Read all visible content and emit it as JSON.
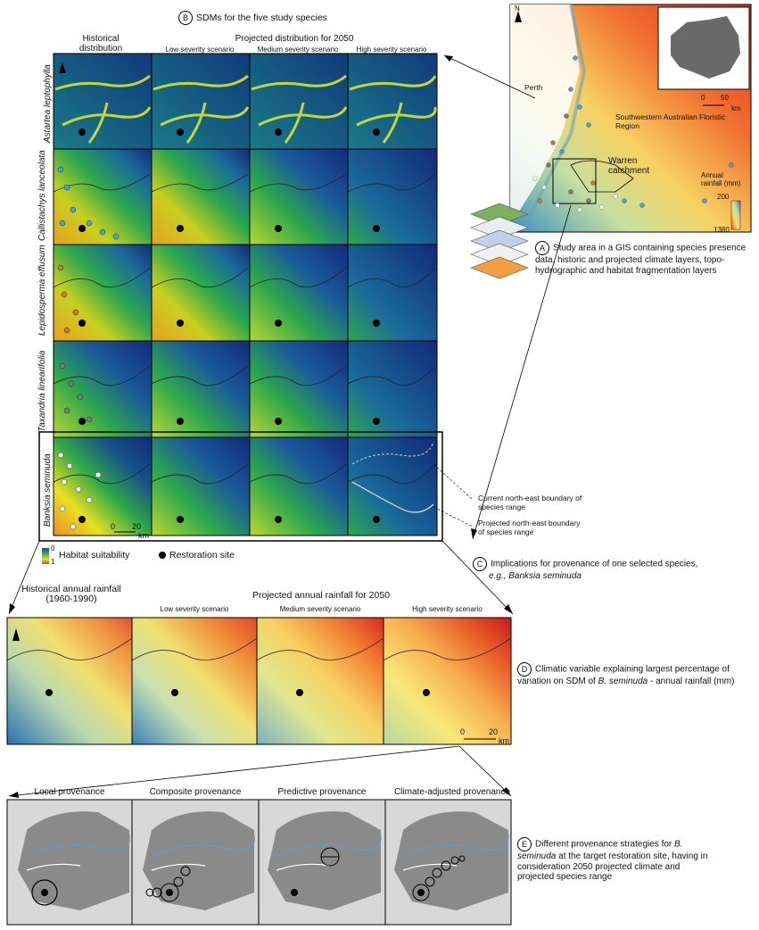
{
  "section_b": {
    "letter": "B",
    "title": "SDMs for the five study species",
    "col_historical": "Historical distribution",
    "projected_header": "Projected distribution for 2050",
    "scenarios": [
      "Low severity scenario",
      "Medium severity scenario",
      "High severity scenario"
    ],
    "species": [
      "Astartea leptophylla",
      "Callistachys lanceolata",
      "Lepidosperma effusum",
      "Taxandria linearifolia",
      "Banksia seminuda"
    ],
    "scale": {
      "zero": "0",
      "dist": "20",
      "unit": "km"
    },
    "legend_habitat": "Habitat suitability",
    "legend_habitat_max": "0",
    "legend_habitat_min": "1",
    "legend_restoration": "Restoration site",
    "boundary_current": "Current north-east boundary of species range",
    "boundary_projected": "Projected north-east boundary of species range"
  },
  "section_a": {
    "letter": "A",
    "text": "Study area in a GIS containing species presence data, historic and projected climate layers, topo-hydrographic and habitat fragmentation layers",
    "bold_word": "GIS",
    "map_labels": {
      "perth1": "Perth",
      "perth2": "Perth",
      "region": "Southwestern Australian Floristic Region",
      "catchment": "Warren catchment",
      "rainfall_title": "Annual rainfall (mm)",
      "rainfall_max": "200",
      "rainfall_min": "1380",
      "inset_zero": "0",
      "inset_dist": "50",
      "inset_unit": "km",
      "north": "N"
    }
  },
  "section_c": {
    "letter": "C",
    "text": "Implications for provenance of one selected species,",
    "italic": "e.g., Banksia seminuda"
  },
  "section_d": {
    "letter": "D",
    "hist_title": "Historical annual rainfall (1960-1990)",
    "proj_title": "Projected annual rainfall for 2050",
    "scenarios": [
      "Low severity scenario",
      "Medium severity scenario",
      "High severity scenario"
    ],
    "text": "Climatic variable explaining largest percentage of variation on SDM of",
    "text_italic": "B. seminuda",
    "text_end": "- annual rainfall (mm)",
    "scale": {
      "zero": "0",
      "dist": "20",
      "unit": "km"
    }
  },
  "section_e": {
    "letter": "E",
    "titles": [
      "Local provenance",
      "Composite provenance",
      "Predictive provenance",
      "Climate-adjusted provenance"
    ],
    "text_a": "Different provenance strategies for",
    "text_italic": "B. seminuda",
    "text_b": "at the target restoration site, having in consideration 2050 projected climate and projected species range"
  }
}
